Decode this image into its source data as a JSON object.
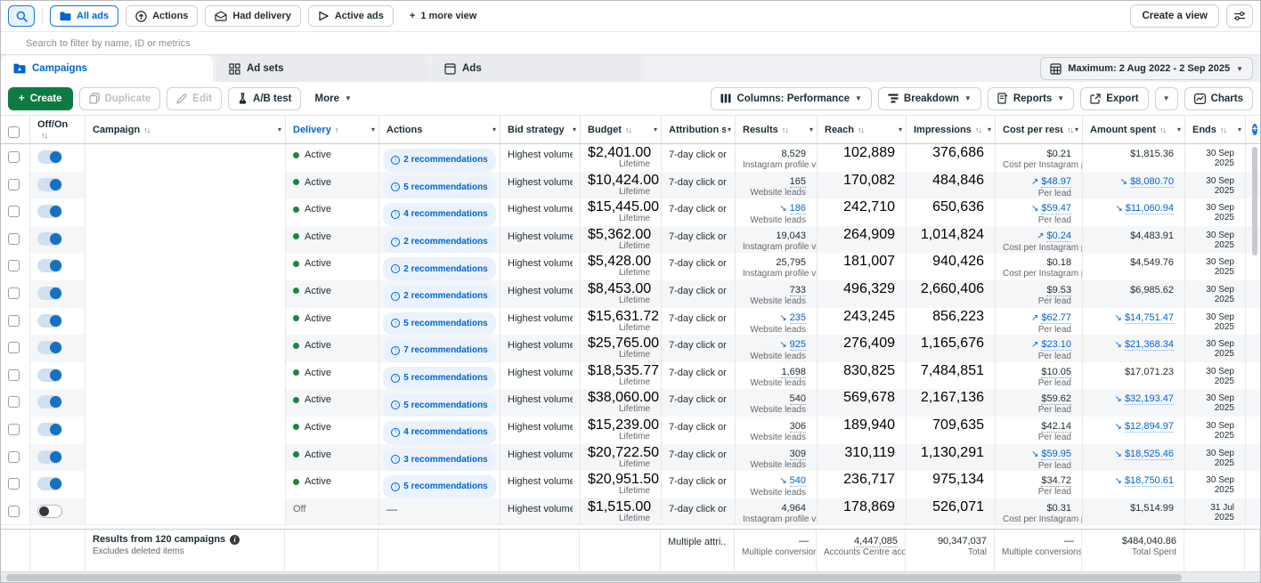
{
  "viewbar": {
    "views": [
      {
        "label": "All ads",
        "icon": "folder",
        "active": true
      },
      {
        "label": "Actions",
        "icon": "circle-arrow",
        "active": false
      },
      {
        "label": "Had delivery",
        "icon": "envelope",
        "active": false
      },
      {
        "label": "Active ads",
        "icon": "play",
        "active": false
      }
    ],
    "more_view_label": "1 more view",
    "create_view_label": "Create a view"
  },
  "search": {
    "placeholder": "Search to filter by name, ID or metrics"
  },
  "tabs": [
    {
      "label": "Campaigns",
      "active": true
    },
    {
      "label": "Ad sets",
      "active": false
    },
    {
      "label": "Ads",
      "active": false
    }
  ],
  "date_range": {
    "label": "Maximum: 2 Aug 2022 - 2 Sep 2025"
  },
  "action_bar": {
    "create": "Create",
    "duplicate": "Duplicate",
    "edit": "Edit",
    "ab_test": "A/B test",
    "more": "More",
    "columns": "Columns: Performance",
    "breakdown": "Breakdown",
    "reports": "Reports",
    "export": "Export",
    "charts": "Charts"
  },
  "colors": {
    "accent_blue": "#0064d1",
    "green_button": "#0e7b43",
    "active_dot_green": "#1d8348",
    "pill_bg": "#e9f2fd",
    "stripe": "#f5f6f8"
  },
  "table": {
    "columns": [
      {
        "key": "offon",
        "label": "Off/On",
        "sort": "both",
        "caret": false
      },
      {
        "key": "campaign",
        "label": "Campaign",
        "sort": "both",
        "caret": true
      },
      {
        "key": "delivery",
        "label": "Delivery",
        "sort": "up",
        "caret": true,
        "sorted": true
      },
      {
        "key": "actions",
        "label": "Actions",
        "sort": null,
        "caret": true
      },
      {
        "key": "bid",
        "label": "Bid strategy",
        "sort": null,
        "caret": true
      },
      {
        "key": "budget",
        "label": "Budget",
        "sort": "both",
        "caret": true
      },
      {
        "key": "attribution",
        "label": "Attribution setting",
        "sort": null,
        "caret": true
      },
      {
        "key": "results",
        "label": "Results",
        "sort": "both",
        "caret": true
      },
      {
        "key": "reach",
        "label": "Reach",
        "sort": "both",
        "caret": true
      },
      {
        "key": "impressions",
        "label": "Impressions",
        "sort": "both",
        "caret": true
      },
      {
        "key": "cpr",
        "label": "Cost per result",
        "sort": "both",
        "caret": true
      },
      {
        "key": "spent",
        "label": "Amount spent",
        "sort": "both",
        "caret": true
      },
      {
        "key": "ends",
        "label": "Ends",
        "sort": "both",
        "caret": true
      }
    ],
    "rows": [
      {
        "toggle": "on",
        "delivery": "Active",
        "recommendations": "2 recommendations",
        "bid": "Highest volume",
        "budget": {
          "value": "$2,401.00",
          "sub": "Lifetime"
        },
        "attribution": "7-day click or ...",
        "results": {
          "value": "8,529",
          "sub": "Instagram profile visits",
          "trend": null,
          "dotted": false
        },
        "reach": "102,889",
        "impressions": "376,686",
        "cpr": {
          "value": "$0.21",
          "sub": "Cost per Instagram pr...",
          "trend": null,
          "dotted": false
        },
        "spent": {
          "value": "$1,815.36",
          "trend": null,
          "dotted": false
        },
        "ends": "30 Sep 2025"
      },
      {
        "toggle": "on",
        "delivery": "Active",
        "recommendations": "5 recommendations",
        "bid": "Highest volume",
        "budget": {
          "value": "$10,424.00",
          "sub": "Lifetime"
        },
        "attribution": "7-day click or ...",
        "results": {
          "value": "165",
          "sub": "Website leads",
          "trend": null,
          "dotted": true
        },
        "reach": "170,082",
        "impressions": "484,846",
        "cpr": {
          "value": "$48.97",
          "sub": "Per lead",
          "trend": "up",
          "dotted": true
        },
        "spent": {
          "value": "$8,080.70",
          "trend": "down",
          "dotted": true
        },
        "ends": "30 Sep 2025"
      },
      {
        "toggle": "on",
        "delivery": "Active",
        "recommendations": "4 recommendations",
        "bid": "Highest volume",
        "budget": {
          "value": "$15,445.00",
          "sub": "Lifetime"
        },
        "attribution": "7-day click or ...",
        "results": {
          "value": "186",
          "sub": "Website leads",
          "trend": "down",
          "dotted": true
        },
        "reach": "242,710",
        "impressions": "650,636",
        "cpr": {
          "value": "$59.47",
          "sub": "Per lead",
          "trend": "down",
          "dotted": true
        },
        "spent": {
          "value": "$11,060.94",
          "trend": "down",
          "dotted": true
        },
        "ends": "30 Sep 2025"
      },
      {
        "toggle": "on",
        "delivery": "Active",
        "recommendations": "2 recommendations",
        "bid": "Highest volume",
        "budget": {
          "value": "$5,362.00",
          "sub": "Lifetime"
        },
        "attribution": "7-day click or ...",
        "results": {
          "value": "19,043",
          "sub": "Instagram profile visits",
          "trend": null,
          "dotted": false
        },
        "reach": "264,909",
        "impressions": "1,014,824",
        "cpr": {
          "value": "$0.24",
          "sub": "Cost per Instagram pr...",
          "trend": "up",
          "dotted": true
        },
        "spent": {
          "value": "$4,483.91",
          "trend": null,
          "dotted": false
        },
        "ends": "30 Sep 2025"
      },
      {
        "toggle": "on",
        "delivery": "Active",
        "recommendations": "2 recommendations",
        "bid": "Highest volume",
        "budget": {
          "value": "$5,428.00",
          "sub": "Lifetime"
        },
        "attribution": "7-day click or ...",
        "results": {
          "value": "25,795",
          "sub": "Instagram profile visits",
          "trend": null,
          "dotted": false
        },
        "reach": "181,007",
        "impressions": "940,426",
        "cpr": {
          "value": "$0.18",
          "sub": "Cost per Instagram pr...",
          "trend": null,
          "dotted": false
        },
        "spent": {
          "value": "$4,549.76",
          "trend": null,
          "dotted": false
        },
        "ends": "30 Sep 2025"
      },
      {
        "toggle": "on",
        "delivery": "Active",
        "recommendations": "2 recommendations",
        "bid": "Highest volume",
        "budget": {
          "value": "$8,453.00",
          "sub": "Lifetime"
        },
        "attribution": "7-day click or ...",
        "results": {
          "value": "733",
          "sub": "Website leads",
          "trend": null,
          "dotted": true
        },
        "reach": "496,329",
        "impressions": "2,660,406",
        "cpr": {
          "value": "$9.53",
          "sub": "Per lead",
          "trend": null,
          "dotted": true
        },
        "spent": {
          "value": "$6,985.62",
          "trend": null,
          "dotted": false
        },
        "ends": "30 Sep 2025"
      },
      {
        "toggle": "on",
        "delivery": "Active",
        "recommendations": "5 recommendations",
        "bid": "Highest volume",
        "budget": {
          "value": "$15,631.72",
          "sub": "Lifetime"
        },
        "attribution": "7-day click or ...",
        "results": {
          "value": "235",
          "sub": "Website leads",
          "trend": "down",
          "dotted": true
        },
        "reach": "243,245",
        "impressions": "856,223",
        "cpr": {
          "value": "$62.77",
          "sub": "Per lead",
          "trend": "up",
          "dotted": true
        },
        "spent": {
          "value": "$14,751.47",
          "trend": "down",
          "dotted": true
        },
        "ends": "30 Sep 2025"
      },
      {
        "toggle": "on",
        "delivery": "Active",
        "recommendations": "7 recommendations",
        "bid": "Highest volume",
        "budget": {
          "value": "$25,765.00",
          "sub": "Lifetime"
        },
        "attribution": "7-day click or ...",
        "results": {
          "value": "925",
          "sub": "Website leads",
          "trend": "down",
          "dotted": true
        },
        "reach": "276,409",
        "impressions": "1,165,676",
        "cpr": {
          "value": "$23.10",
          "sub": "Per lead",
          "trend": "up",
          "dotted": true
        },
        "spent": {
          "value": "$21,368.34",
          "trend": "down",
          "dotted": true
        },
        "ends": "30 Sep 2025"
      },
      {
        "toggle": "on",
        "delivery": "Active",
        "recommendations": "5 recommendations",
        "bid": "Highest volume",
        "budget": {
          "value": "$18,535.77",
          "sub": "Lifetime"
        },
        "attribution": "7-day click or ...",
        "results": {
          "value": "1,698",
          "sub": "Website leads",
          "trend": null,
          "dotted": true
        },
        "reach": "830,825",
        "impressions": "7,484,851",
        "cpr": {
          "value": "$10.05",
          "sub": "Per lead",
          "trend": null,
          "dotted": true
        },
        "spent": {
          "value": "$17,071.23",
          "trend": null,
          "dotted": false
        },
        "ends": "30 Sep 2025"
      },
      {
        "toggle": "on",
        "delivery": "Active",
        "recommendations": "5 recommendations",
        "bid": "Highest volume",
        "budget": {
          "value": "$38,060.00",
          "sub": "Lifetime"
        },
        "attribution": "7-day click or ...",
        "results": {
          "value": "540",
          "sub": "Website leads",
          "trend": null,
          "dotted": true
        },
        "reach": "569,678",
        "impressions": "2,167,136",
        "cpr": {
          "value": "$59.62",
          "sub": "Per lead",
          "trend": null,
          "dotted": true
        },
        "spent": {
          "value": "$32,193.47",
          "trend": "down",
          "dotted": true
        },
        "ends": "30 Sep 2025"
      },
      {
        "toggle": "on",
        "delivery": "Active",
        "recommendations": "4 recommendations",
        "bid": "Highest volume",
        "budget": {
          "value": "$15,239.00",
          "sub": "Lifetime"
        },
        "attribution": "7-day click or ...",
        "results": {
          "value": "306",
          "sub": "Website leads",
          "trend": null,
          "dotted": true
        },
        "reach": "189,940",
        "impressions": "709,635",
        "cpr": {
          "value": "$42.14",
          "sub": "Per lead",
          "trend": null,
          "dotted": true
        },
        "spent": {
          "value": "$12,894.97",
          "trend": "down",
          "dotted": true
        },
        "ends": "30 Sep 2025"
      },
      {
        "toggle": "on",
        "delivery": "Active",
        "recommendations": "3 recommendations",
        "bid": "Highest volume",
        "budget": {
          "value": "$20,722.50",
          "sub": "Lifetime"
        },
        "attribution": "7-day click or ...",
        "results": {
          "value": "309",
          "sub": "Website leads",
          "trend": null,
          "dotted": true
        },
        "reach": "310,119",
        "impressions": "1,130,291",
        "cpr": {
          "value": "$59.95",
          "sub": "Per lead",
          "trend": "down",
          "dotted": true
        },
        "spent": {
          "value": "$18,525.46",
          "trend": "down",
          "dotted": true
        },
        "ends": "30 Sep 2025"
      },
      {
        "toggle": "on",
        "delivery": "Active",
        "recommendations": "5 recommendations",
        "bid": "Highest volume",
        "budget": {
          "value": "$20,951.50",
          "sub": "Lifetime"
        },
        "attribution": "7-day click or ...",
        "results": {
          "value": "540",
          "sub": "Website leads",
          "trend": "down",
          "dotted": true
        },
        "reach": "236,717",
        "impressions": "975,134",
        "cpr": {
          "value": "$34.72",
          "sub": "Per lead",
          "trend": null,
          "dotted": true
        },
        "spent": {
          "value": "$18,750.61",
          "trend": "down",
          "dotted": true
        },
        "ends": "30 Sep 2025"
      },
      {
        "toggle": "off",
        "delivery": "Off",
        "recommendations": null,
        "bid": "Highest volume",
        "budget": {
          "value": "$1,515.00",
          "sub": "Lifetime"
        },
        "attribution": "7-day click or ...",
        "results": {
          "value": "4,964",
          "sub": "Instagram profile visits",
          "trend": null,
          "dotted": false
        },
        "reach": "178,869",
        "impressions": "526,071",
        "cpr": {
          "value": "$0.31",
          "sub": "Cost per Instagram pr...",
          "trend": null,
          "dotted": false
        },
        "spent": {
          "value": "$1,514.99",
          "trend": null,
          "dotted": false
        },
        "ends": "31 Jul 2025"
      }
    ],
    "footer": {
      "summary_title": "Results from 120 campaigns",
      "summary_sub": "Excludes deleted items",
      "attribution": "Multiple attri...",
      "results": {
        "value": "—",
        "sub": "Multiple conversions",
        "dotted": false
      },
      "reach": {
        "value": "4,447,085",
        "sub": "Accounts Centre acco...",
        "dotted": true
      },
      "impressions": {
        "value": "90,347,037",
        "sub": "Total",
        "dotted": false
      },
      "cpr": {
        "value": "—",
        "sub": "Multiple conversions",
        "dotted": false
      },
      "spent": {
        "value": "$484,040.86",
        "sub": "Total Spent",
        "dotted": false
      }
    }
  }
}
